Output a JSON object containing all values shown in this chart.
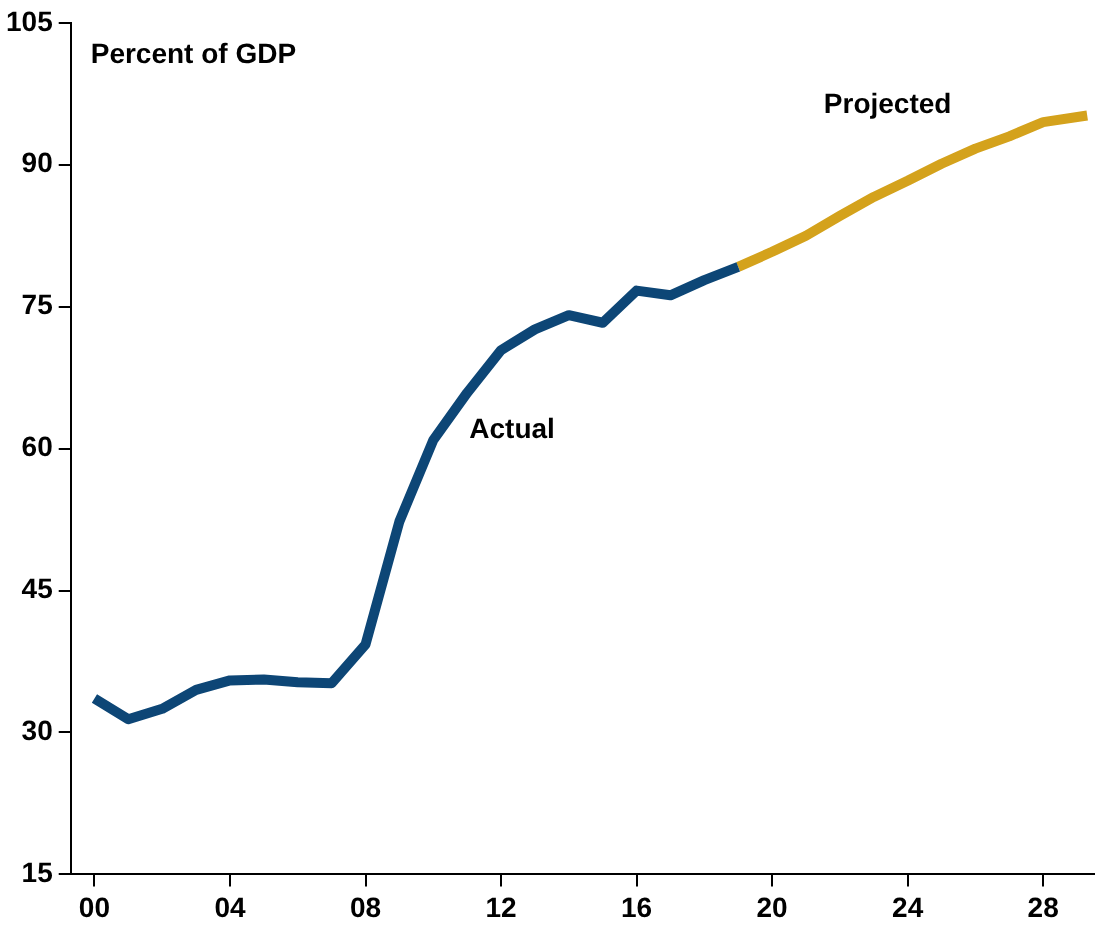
{
  "chart_data": {
    "type": "line",
    "ylabel": "Percent of GDP",
    "series": [
      {
        "name": "Actual",
        "color": "#0d4676",
        "x": [
          2000,
          2001,
          2002,
          2003,
          2004,
          2005,
          2006,
          2007,
          2008,
          2009,
          2010,
          2011,
          2012,
          2013,
          2014,
          2015,
          2016,
          2017,
          2018,
          2019
        ],
        "values": [
          33.6,
          31.4,
          32.5,
          34.5,
          35.5,
          35.6,
          35.3,
          35.2,
          39.3,
          52.3,
          60.9,
          65.9,
          70.4,
          72.6,
          74.1,
          73.3,
          76.7,
          76.2,
          77.8,
          79.2
        ]
      },
      {
        "name": "Projected",
        "color": "#d4a21c",
        "x": [
          2019,
          2020,
          2021,
          2022,
          2023,
          2024,
          2025,
          2026,
          2027,
          2028,
          2029.3
        ],
        "values": [
          79.2,
          80.8,
          82.5,
          84.6,
          86.6,
          88.3,
          90.1,
          91.7,
          93.0,
          94.5,
          95.2
        ]
      }
    ],
    "xlim": [
      1999.3,
      2029.5
    ],
    "xticks": [
      {
        "value": 2000,
        "label": "00"
      },
      {
        "value": 2004,
        "label": "04"
      },
      {
        "value": 2008,
        "label": "08"
      },
      {
        "value": 2012,
        "label": "12"
      },
      {
        "value": 2016,
        "label": "16"
      },
      {
        "value": 2020,
        "label": "20"
      },
      {
        "value": 2024,
        "label": "24"
      },
      {
        "value": 2028,
        "label": "28"
      }
    ],
    "ylim": [
      15,
      105
    ],
    "yticks": [
      15,
      30,
      45,
      60,
      75,
      90,
      105
    ],
    "grid": false,
    "legend": false
  }
}
